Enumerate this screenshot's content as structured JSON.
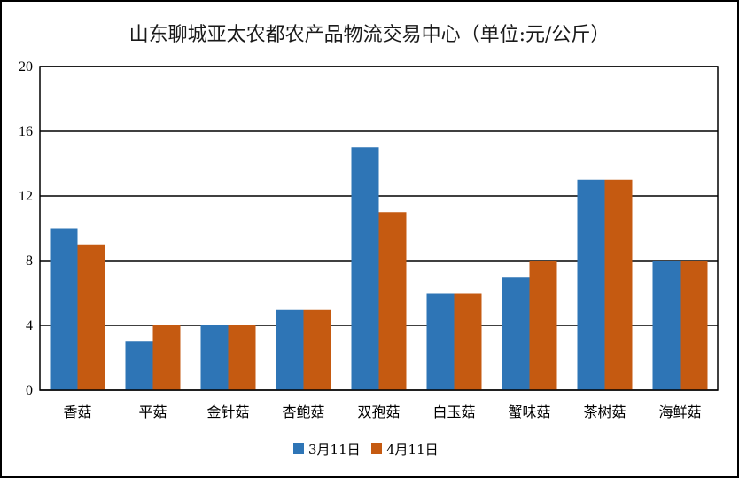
{
  "chart_data": {
    "type": "bar",
    "title": "山东聊城亚太农都农产品物流交易中心（单位:元/公斤）",
    "categories": [
      "香菇",
      "平菇",
      "金针菇",
      "杏鲍菇",
      "双孢菇",
      "白玉菇",
      "蟹味菇",
      "茶树菇",
      "海鲜菇"
    ],
    "series": [
      {
        "name": "3月11日",
        "values": [
          10,
          3,
          4,
          5,
          15,
          6,
          7,
          13,
          8
        ],
        "color": "#2E75B6"
      },
      {
        "name": "4月11日",
        "values": [
          9,
          4,
          4,
          5,
          11,
          6,
          8,
          13,
          8
        ],
        "color": "#C55A11"
      }
    ],
    "ylim": [
      0,
      20
    ],
    "yticks": [
      0,
      4,
      8,
      12,
      16,
      20
    ],
    "grid": true,
    "legend": "bottom-center"
  }
}
